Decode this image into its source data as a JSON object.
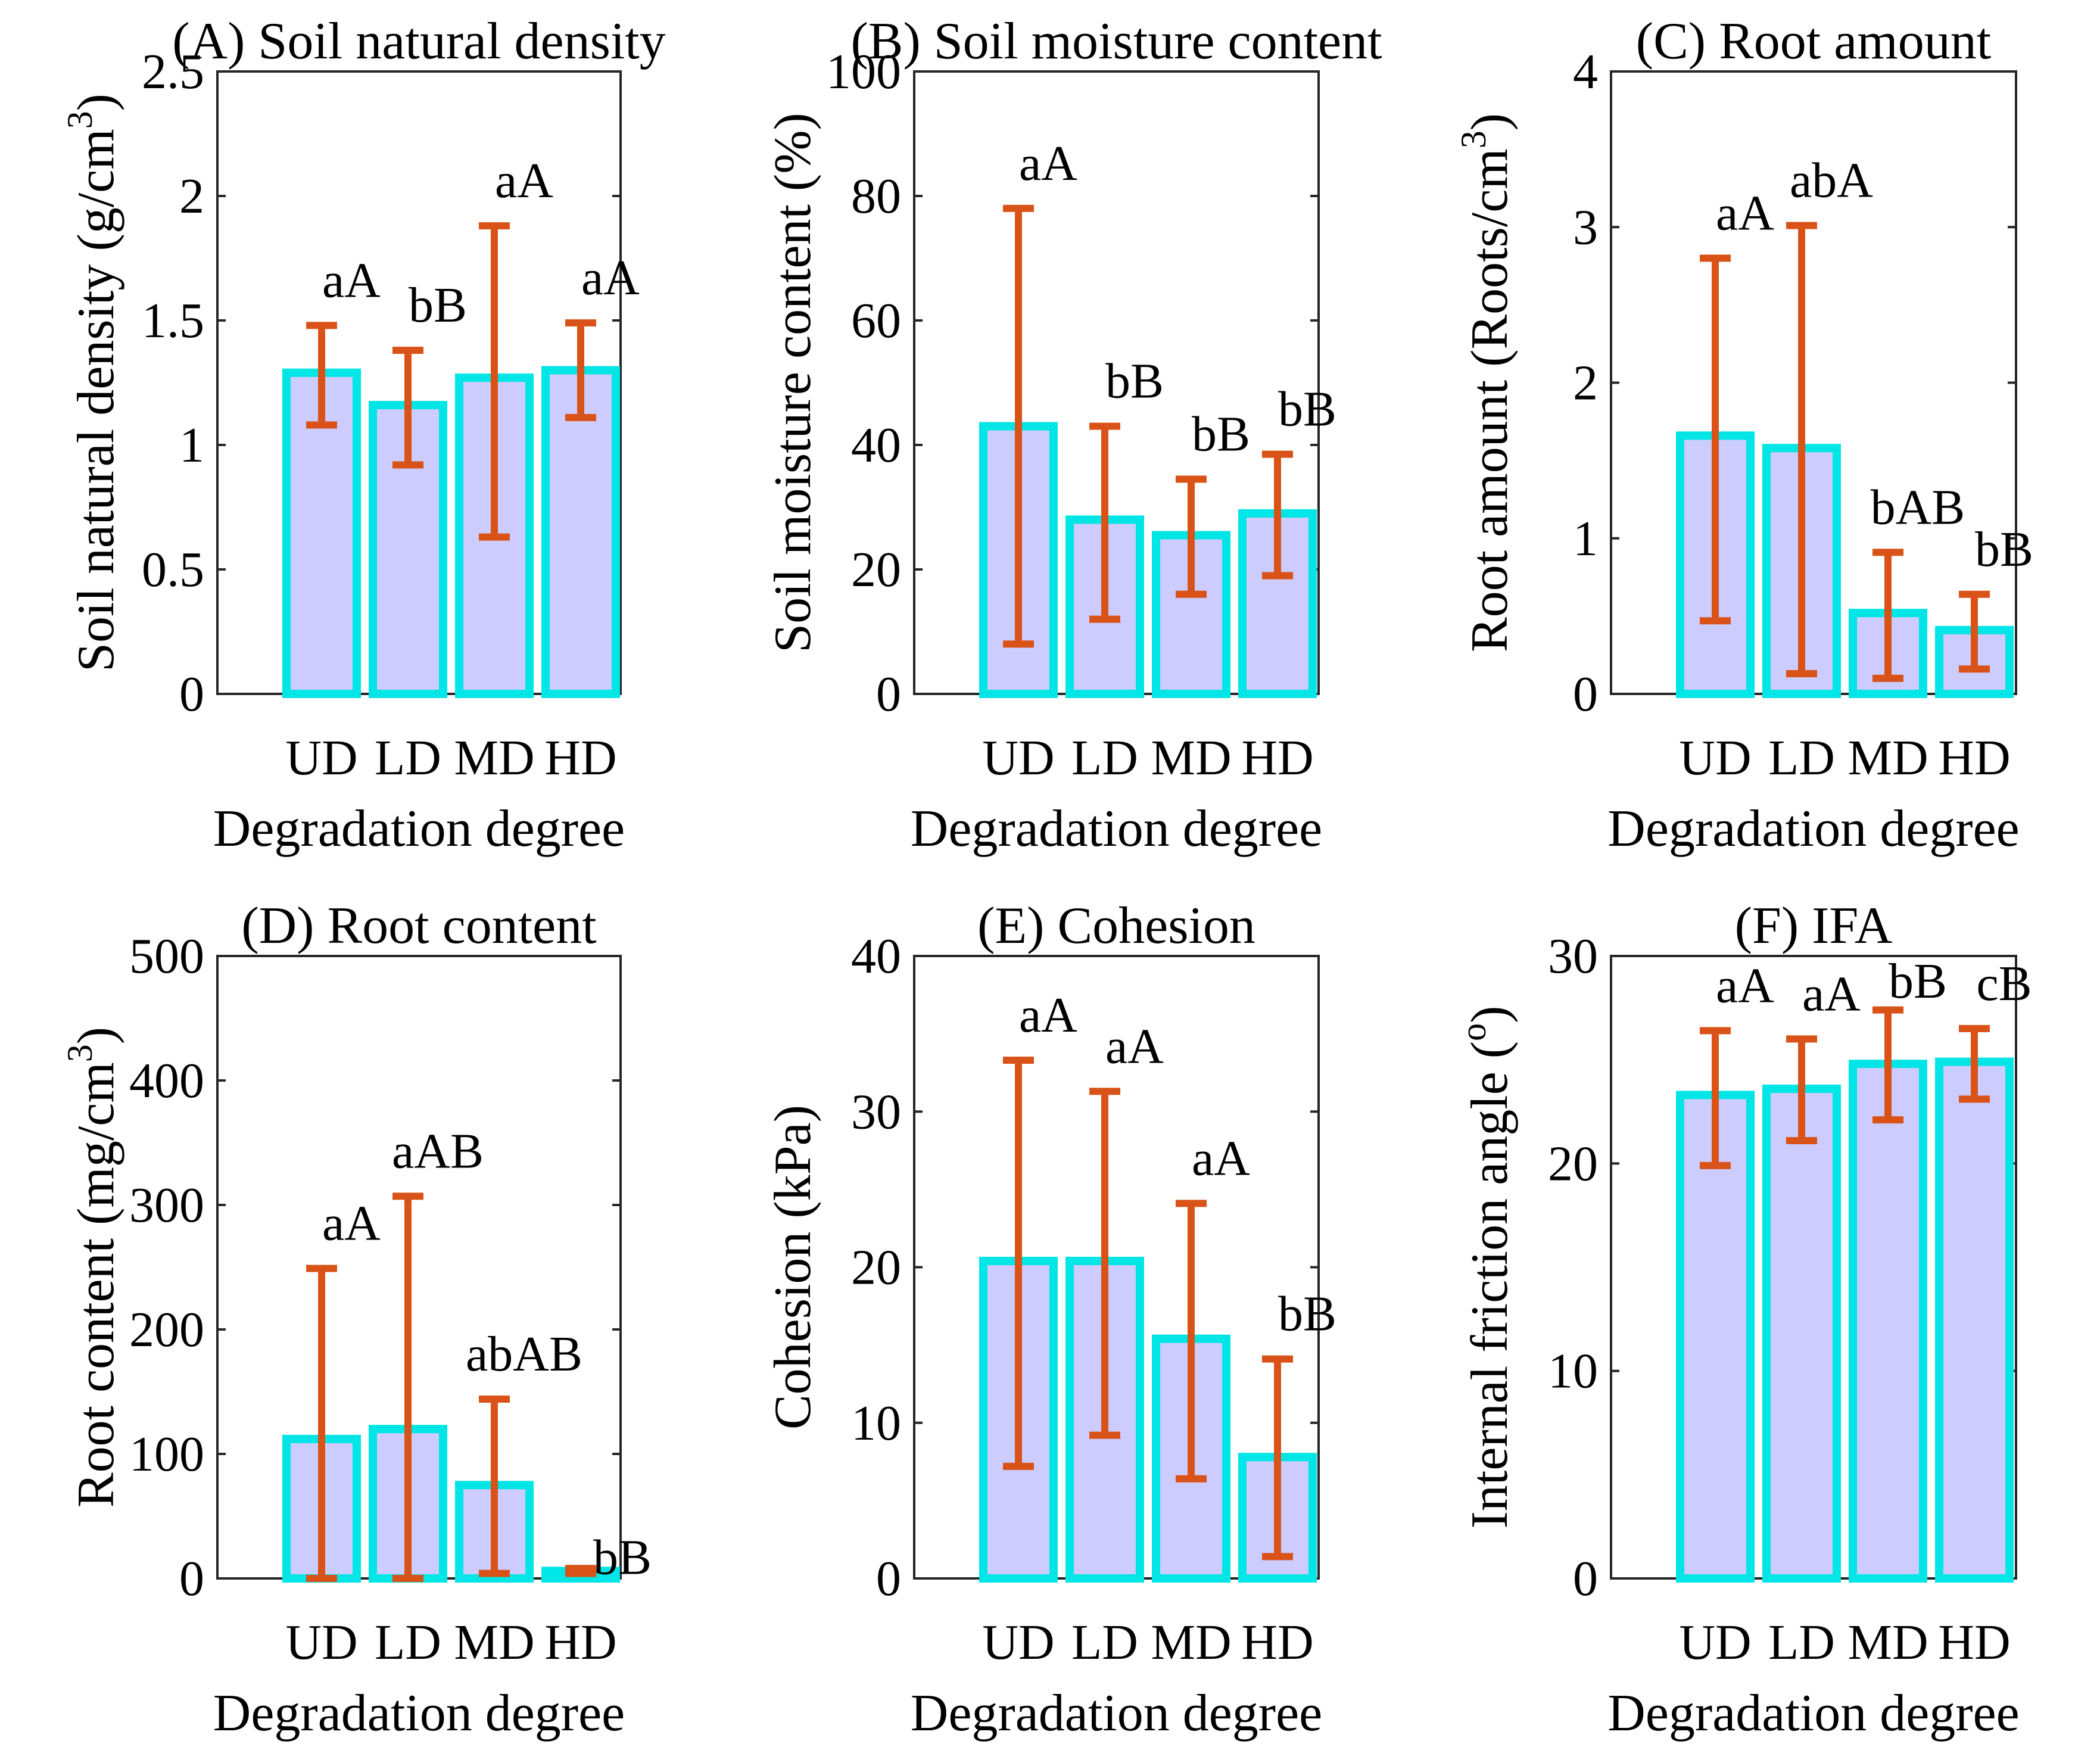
{
  "figure": {
    "bar_fill": "#ccccff",
    "bar_edge": "#00e5e5",
    "errorbar_color": "#d95319",
    "axis_color": "#262626"
  },
  "chart_data": [
    {
      "type": "bar",
      "title": "(A) Soil natural density",
      "xlabel": "Degradation degree",
      "ylabel": "Soil natural density (g/cm",
      "ylabel_sup": "3",
      "ylabel_close": ")",
      "categories": [
        "UD",
        "LD",
        "MD",
        "HD"
      ],
      "values": [
        1.29,
        1.16,
        1.27,
        1.3
      ],
      "err_low": [
        1.08,
        0.92,
        0.63,
        1.11
      ],
      "err_high": [
        1.48,
        1.38,
        1.88,
        1.49
      ],
      "letters": [
        "aA",
        "bB",
        "aA",
        "aA"
      ],
      "ylim": [
        0,
        2.5
      ],
      "yticks": [
        0,
        0.5,
        1,
        1.5,
        2,
        2.5
      ],
      "ytick_labels": [
        "0",
        "0.5",
        "1",
        "1.5",
        "2",
        "2.5"
      ]
    },
    {
      "type": "bar",
      "title": "(B) Soil moisture content",
      "xlabel": "Degradation degree",
      "ylabel": "Soil moisture content (%)",
      "ylabel_sup": "",
      "ylabel_close": "",
      "categories": [
        "UD",
        "LD",
        "MD",
        "HD"
      ],
      "values": [
        43,
        28,
        25.5,
        29
      ],
      "err_low": [
        8,
        12,
        16,
        19
      ],
      "err_high": [
        78,
        43,
        34.5,
        38.5
      ],
      "letters": [
        "aA",
        "bB",
        "bB",
        "bB"
      ],
      "ylim": [
        0,
        100
      ],
      "yticks": [
        0,
        20,
        40,
        60,
        80,
        100
      ],
      "ytick_labels": [
        "0",
        "20",
        "40",
        "60",
        "80",
        "100"
      ]
    },
    {
      "type": "bar",
      "title": "(C) Root amount",
      "xlabel": "Degradation degree",
      "ylabel": "Root amount (Roots/cm",
      "ylabel_sup": "3",
      "ylabel_close": ")",
      "categories": [
        "UD",
        "LD",
        "MD",
        "HD"
      ],
      "values": [
        1.66,
        1.58,
        0.52,
        0.41
      ],
      "err_low": [
        0.47,
        0.13,
        0.1,
        0.16
      ],
      "err_high": [
        2.8,
        3.01,
        0.91,
        0.64
      ],
      "letters": [
        "aA",
        "abA",
        "bAB",
        "bB"
      ],
      "ylim": [
        0,
        4
      ],
      "yticks": [
        0,
        1,
        2,
        3,
        4
      ],
      "ytick_labels": [
        "0",
        "1",
        "2",
        "3",
        "4"
      ]
    },
    {
      "type": "bar",
      "title": "(D) Root content",
      "xlabel": "Degradation degree",
      "ylabel": "Root content (mg/cm",
      "ylabel_sup": "3",
      "ylabel_close": ")",
      "categories": [
        "UD",
        "LD",
        "MD",
        "HD"
      ],
      "values": [
        112,
        120,
        75,
        6
      ],
      "err_low": [
        0,
        0,
        4,
        4
      ],
      "err_high": [
        249,
        307,
        144,
        8
      ],
      "letters": [
        "aA",
        "aAB",
        "abAB",
        "bB"
      ],
      "ylim": [
        0,
        500
      ],
      "yticks": [
        0,
        100,
        200,
        300,
        400,
        500
      ],
      "ytick_labels": [
        "0",
        "100",
        "200",
        "300",
        "400",
        "500"
      ]
    },
    {
      "type": "bar",
      "title": "(E) Cohesion",
      "xlabel": "Degradation degree",
      "ylabel": "Cohesion (kPa)",
      "ylabel_sup": "",
      "ylabel_close": "",
      "categories": [
        "UD",
        "LD",
        "MD",
        "HD"
      ],
      "values": [
        20.4,
        20.4,
        15.4,
        7.8
      ],
      "err_low": [
        7.2,
        9.2,
        6.4,
        1.4
      ],
      "err_high": [
        33.3,
        31.3,
        24.1,
        14.1
      ],
      "letters": [
        "aA",
        "aA",
        "aA",
        "bB"
      ],
      "ylim": [
        0,
        40
      ],
      "yticks": [
        0,
        10,
        20,
        30,
        40
      ],
      "ytick_labels": [
        "0",
        "10",
        "20",
        "30",
        "40"
      ]
    },
    {
      "type": "bar",
      "title": "(F) IFA",
      "xlabel": "Degradation degree",
      "ylabel": "Internal friction angle (",
      "ylabel_sup": "o",
      "ylabel_close": ")",
      "categories": [
        "UD",
        "LD",
        "MD",
        "HD"
      ],
      "values": [
        23.3,
        23.6,
        24.8,
        24.9
      ],
      "err_low": [
        19.9,
        21.1,
        22.1,
        23.1
      ],
      "err_high": [
        26.4,
        26.0,
        27.4,
        26.5
      ],
      "letters": [
        "aA",
        "aA",
        "bB",
        "cB"
      ],
      "ylim": [
        0,
        30
      ],
      "yticks": [
        0,
        10,
        20,
        30
      ],
      "ytick_labels": [
        "0",
        "10",
        "20",
        "30"
      ]
    }
  ]
}
